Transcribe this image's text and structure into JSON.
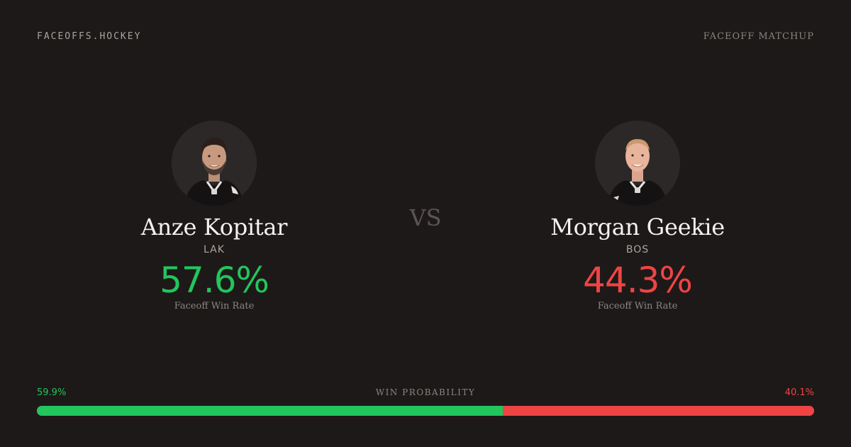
{
  "header": {
    "brand": "FACEOFFS.HOCKEY",
    "label": "FACEOFF MATCHUP"
  },
  "vs": "VS",
  "players": [
    {
      "name": "Anze Kopitar",
      "team": "LAK",
      "win_rate": "57.6%",
      "win_rate_label": "Faceoff Win Rate",
      "color": "#22c55e",
      "avatar_icon": "player-headshot-icon"
    },
    {
      "name": "Morgan Geekie",
      "team": "BOS",
      "win_rate": "44.3%",
      "win_rate_label": "Faceoff Win Rate",
      "color": "#ef4444",
      "avatar_icon": "player-headshot-icon"
    }
  ],
  "win_probability": {
    "title": "WIN PROBABILITY",
    "left_label": "59.9%",
    "right_label": "40.1%",
    "left_fraction": 0.599,
    "right_fraction": 0.401,
    "left_color": "#22c55e",
    "right_color": "#ef4444"
  }
}
